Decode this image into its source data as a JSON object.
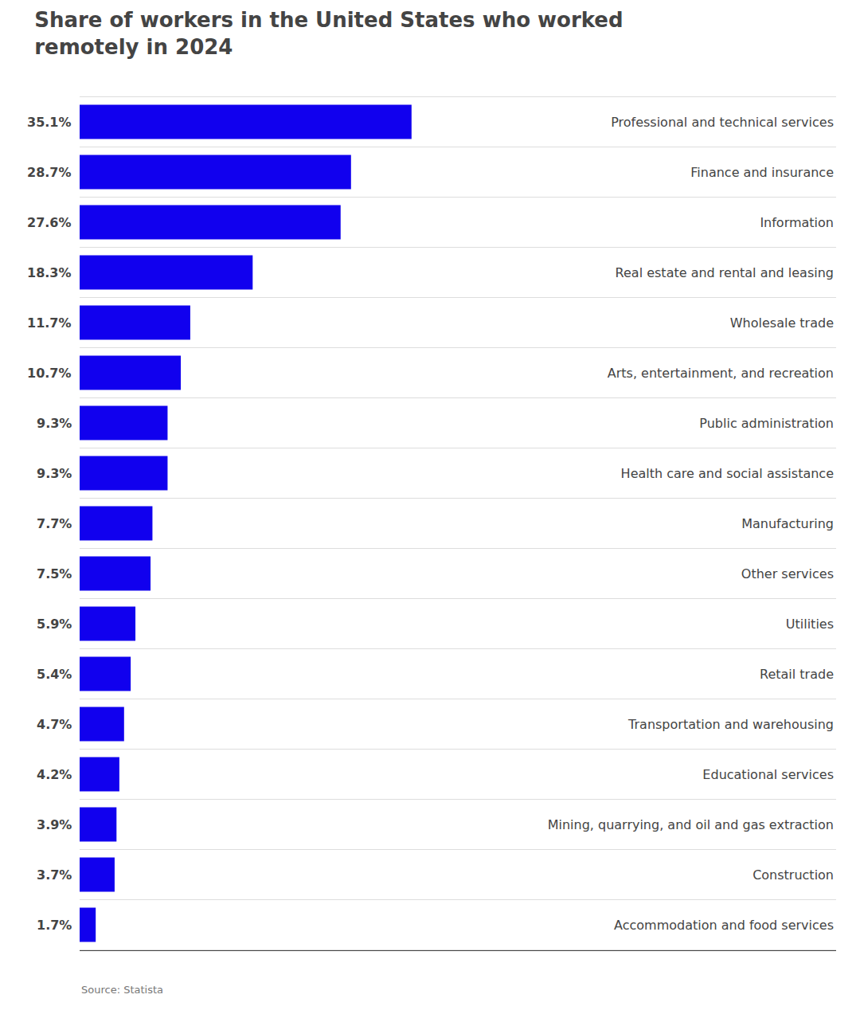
{
  "chart_data": {
    "type": "bar",
    "orientation": "horizontal",
    "title": "Share of workers in the United States who worked\nremotely in 2024",
    "categories": [
      "Professional and technical services",
      "Finance and insurance",
      "Information",
      "Real estate and rental and leasing",
      "Wholesale trade",
      "Arts, entertainment, and recreation",
      "Public administration",
      "Health care and social assistance",
      "Manufacturing",
      "Other services",
      "Utilities",
      "Retail trade",
      "Transportation and warehousing",
      "Educational services",
      "Mining, quarrying, and oil and gas extraction",
      "Construction",
      "Accommodation and food services"
    ],
    "values": [
      35.1,
      28.7,
      27.6,
      18.3,
      11.7,
      10.7,
      9.3,
      9.3,
      7.7,
      7.5,
      5.9,
      5.4,
      4.7,
      4.2,
      3.9,
      3.7,
      1.7
    ],
    "value_labels": [
      "35.1%",
      "28.7%",
      "27.6%",
      "18.3%",
      "11.7%",
      "10.7%",
      "9.3%",
      "9.3%",
      "7.7%",
      "7.5%",
      "5.9%",
      "5.4%",
      "4.7%",
      "4.2%",
      "3.9%",
      "3.7%",
      "1.7%"
    ],
    "data_labels": true,
    "color": "#1100ee",
    "xlim": [
      0,
      80
    ],
    "tick_labels": "y",
    "grid": false,
    "annotations": [
      "Source: Statista"
    ]
  }
}
